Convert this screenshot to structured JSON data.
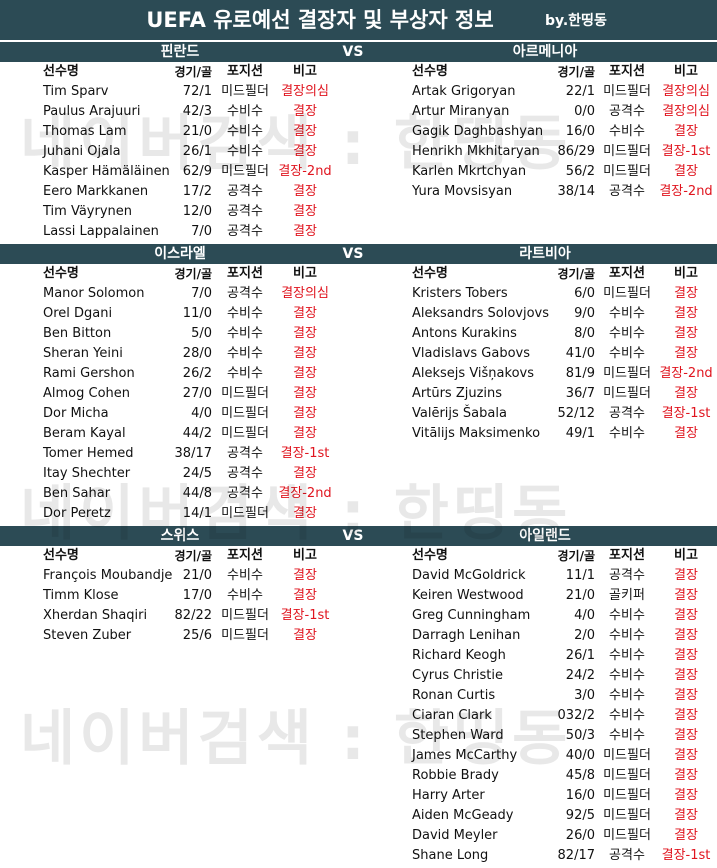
{
  "header": {
    "title": "UEFA 유로예선 결장자 및 부상자 정보",
    "byline": "by.한띵동"
  },
  "watermark": "네이버검색 : 한띵동",
  "columns": [
    "선수명",
    "경기/골",
    "포지션",
    "비고"
  ],
  "vs": "VS",
  "matches": [
    {
      "home": {
        "team": "핀란드",
        "players": [
          [
            "Tim Sparv",
            "72/1",
            "미드필더",
            "결장의심"
          ],
          [
            "Paulus Arajuuri",
            "42/3",
            "수비수",
            "결장"
          ],
          [
            "Thomas Lam",
            "21/0",
            "수비수",
            "결장"
          ],
          [
            "Juhani Ojala",
            "26/1",
            "수비수",
            "결장"
          ],
          [
            "Kasper Hämäläinen",
            "62/9",
            "미드필더",
            "결장-2nd"
          ],
          [
            "Eero Markkanen",
            "17/2",
            "공격수",
            "결장"
          ],
          [
            "Tim Väyrynen",
            "12/0",
            "공격수",
            "결장"
          ],
          [
            "Lassi Lappalainen",
            "7/0",
            "공격수",
            "결장"
          ]
        ]
      },
      "away": {
        "team": "아르메니아",
        "players": [
          [
            "Artak Grigoryan",
            "22/1",
            "미드필더",
            "결장의심"
          ],
          [
            "Artur Miranyan",
            "0/0",
            "공격수",
            "결장의심"
          ],
          [
            "Gagik Daghbashyan",
            "16/0",
            "수비수",
            "결장"
          ],
          [
            "Henrikh Mkhitaryan",
            "86/29",
            "미드필더",
            "결장-1st"
          ],
          [
            "Karlen Mkrtchyan",
            "56/2",
            "미드필더",
            "결장"
          ],
          [
            "Yura Movsisyan",
            "38/14",
            "공격수",
            "결장-2nd"
          ]
        ]
      }
    },
    {
      "home": {
        "team": "이스라엘",
        "players": [
          [
            "Manor Solomon",
            "7/0",
            "공격수",
            "결장의심"
          ],
          [
            "Orel Dgani",
            "11/0",
            "수비수",
            "결장"
          ],
          [
            "Ben Bitton",
            "5/0",
            "수비수",
            "결장"
          ],
          [
            "Sheran Yeini",
            "28/0",
            "수비수",
            "결장"
          ],
          [
            "Rami Gershon",
            "26/2",
            "수비수",
            "결장"
          ],
          [
            "Almog Cohen",
            "27/0",
            "미드필더",
            "결장"
          ],
          [
            "Dor Micha",
            "4/0",
            "미드필더",
            "결장"
          ],
          [
            "Beram Kayal",
            "44/2",
            "미드필더",
            "결장"
          ],
          [
            "Tomer Hemed",
            "38/17",
            "공격수",
            "결장-1st"
          ],
          [
            "Itay Shechter",
            "24/5",
            "공격수",
            "결장"
          ],
          [
            "Ben Sahar",
            "44/8",
            "공격수",
            "결장-2nd"
          ],
          [
            "Dor Peretz",
            "14/1",
            "미드필더",
            "결장"
          ]
        ]
      },
      "away": {
        "team": "라트비아",
        "players": [
          [
            "Kristers Tobers",
            "6/0",
            "미드필더",
            "결장"
          ],
          [
            "Aleksandrs Solovjovs",
            "9/0",
            "수비수",
            "결장"
          ],
          [
            "Antons Kurakins",
            "8/0",
            "수비수",
            "결장"
          ],
          [
            "Vladislavs Gabovs",
            "41/0",
            "수비수",
            "결장"
          ],
          [
            "Aleksejs Višņakovs",
            "81/9",
            "미드필더",
            "결장-2nd"
          ],
          [
            "Artūrs Zjuzins",
            "36/7",
            "미드필더",
            "결장"
          ],
          [
            "Valērijs Šabala",
            "52/12",
            "공격수",
            "결장-1st"
          ],
          [
            "Vitālijs Maksimenko",
            "49/1",
            "수비수",
            "결장"
          ]
        ]
      }
    },
    {
      "home": {
        "team": "스위스",
        "players": [
          [
            "François Moubandje",
            "21/0",
            "수비수",
            "결장"
          ],
          [
            "Timm Klose",
            "17/0",
            "수비수",
            "결장"
          ],
          [
            "Xherdan Shaqiri",
            "82/22",
            "미드필더",
            "결장-1st"
          ],
          [
            "Steven Zuber",
            "25/6",
            "미드필더",
            "결장"
          ]
        ]
      },
      "away": {
        "team": "아일랜드",
        "players": [
          [
            "David McGoldrick",
            "11/1",
            "공격수",
            "결장"
          ],
          [
            "Keiren Westwood",
            "21/0",
            "골키퍼",
            "결장"
          ],
          [
            "Greg Cunningham",
            "4/0",
            "수비수",
            "결장"
          ],
          [
            "Darragh Lenihan",
            "2/0",
            "수비수",
            "결장"
          ],
          [
            "Richard Keogh",
            "26/1",
            "수비수",
            "결장"
          ],
          [
            "Cyrus Christie",
            "24/2",
            "수비수",
            "결장"
          ],
          [
            "Ronan Curtis",
            "3/0",
            "수비수",
            "결장"
          ],
          [
            "Ciaran Clark",
            "032/2",
            "수비수",
            "결장"
          ],
          [
            "Stephen Ward",
            "50/3",
            "수비수",
            "결장"
          ],
          [
            "James McCarthy",
            "40/0",
            "미드필더",
            "결장"
          ],
          [
            "Robbie Brady",
            "45/8",
            "미드필더",
            "결장"
          ],
          [
            "Harry Arter",
            "16/0",
            "미드필더",
            "결장"
          ],
          [
            "Aiden McGeady",
            "92/5",
            "미드필더",
            "결장"
          ],
          [
            "David Meyler",
            "26/0",
            "미드필더",
            "결장"
          ],
          [
            "Shane Long",
            "82/17",
            "공격수",
            "결장-1st"
          ]
        ]
      }
    }
  ]
}
